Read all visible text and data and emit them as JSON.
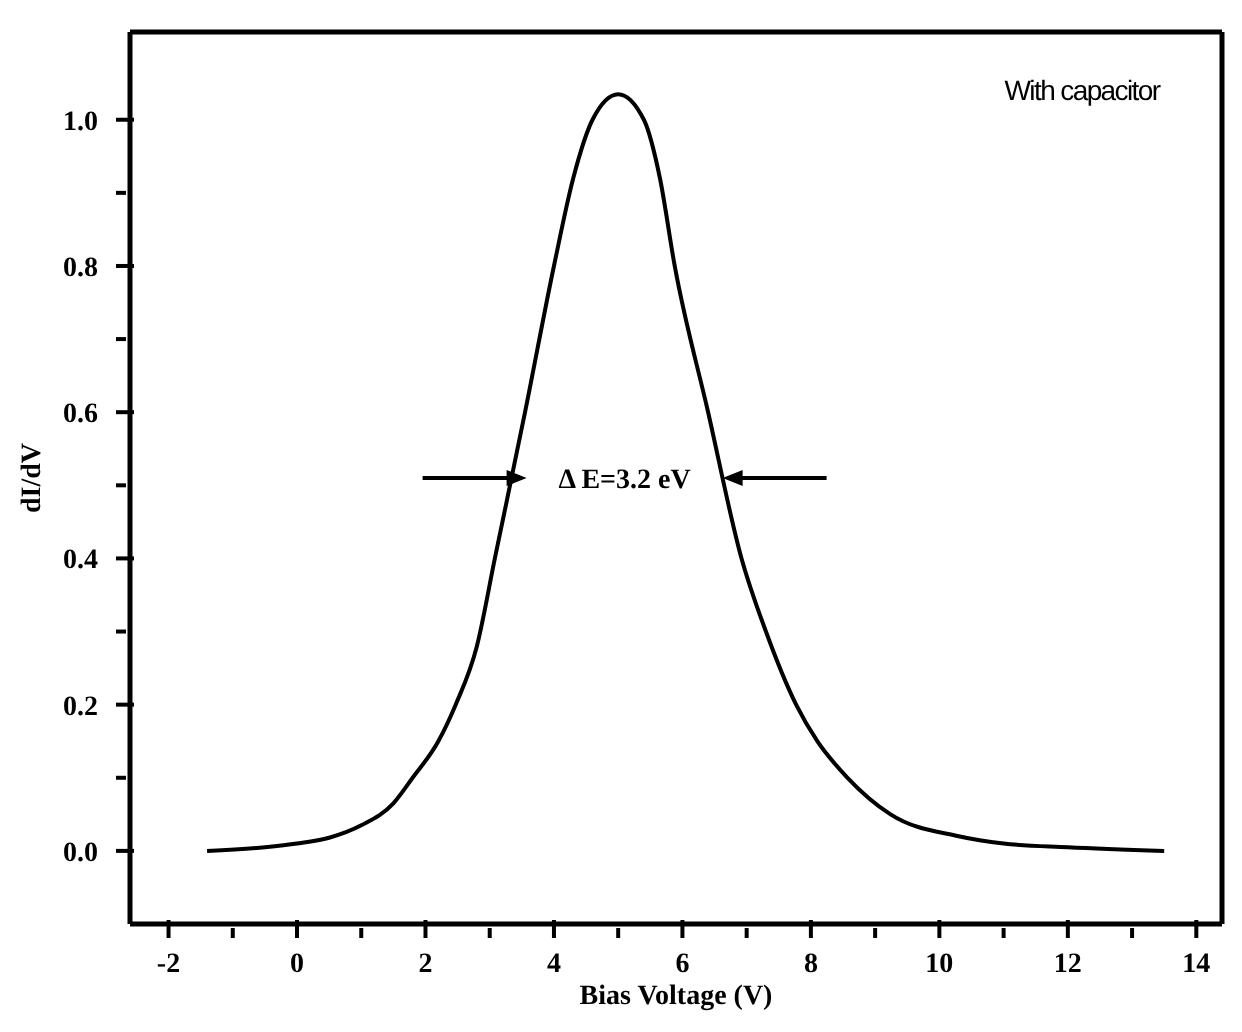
{
  "chart_data": {
    "type": "line",
    "xlabel": "Bias Voltage (V)",
    "ylabel": "dI/dV",
    "x": [
      -1.4,
      -0.5,
      0,
      0.5,
      1,
      1.5,
      1.8,
      2.2,
      2.47,
      2.8,
      3.08,
      3.55,
      4.0,
      4.3,
      4.6,
      5.0,
      5.4,
      5.65,
      5.88,
      6.4,
      6.92,
      7.3,
      7.77,
      8.1,
      8.57,
      9.24,
      10.3,
      11,
      12,
      13.5
    ],
    "series": [
      {
        "color": "#000000",
        "values": [
          0,
          0.005,
          0.01,
          0.018,
          0.035,
          0.065,
          0.1,
          0.15,
          0.2,
          0.28,
          0.4,
          0.6,
          0.8,
          0.92,
          1.0,
          1.035,
          1.0,
          0.92,
          0.8,
          0.6,
          0.4,
          0.3,
          0.2,
          0.15,
          0.1,
          0.05,
          0.02,
          0.01,
          0.005,
          0
        ]
      }
    ],
    "xlim": [
      -2.6,
      14.4
    ],
    "xticks": [
      -2,
      {
        "value": -1,
        "label": null
      },
      0,
      {
        "value": 1,
        "label": null
      },
      2,
      {
        "value": 3,
        "label": null
      },
      4,
      {
        "value": 5,
        "label": null
      },
      6,
      {
        "value": 7,
        "label": null
      },
      8,
      {
        "value": 9,
        "label": null
      },
      10,
      {
        "value": 11,
        "label": null
      },
      12,
      {
        "value": 13,
        "label": null
      },
      14
    ],
    "ylim": [
      -0.1,
      1.12
    ],
    "yticks": [
      {
        "value": 0,
        "label": "0.0"
      },
      {
        "value": 0.1,
        "label": null
      },
      0.2,
      {
        "value": 0.3,
        "label": null
      },
      0.4,
      {
        "value": 0.5,
        "label": null
      },
      0.6,
      {
        "value": 0.7,
        "label": null
      },
      0.8,
      {
        "value": 0.9,
        "label": null
      },
      {
        "value": 1,
        "label": "1.0"
      }
    ],
    "annotations": [
      "With capacitor",
      "Δ E=3.2 eV"
    ],
    "marker": "none",
    "line_style": "solid"
  }
}
